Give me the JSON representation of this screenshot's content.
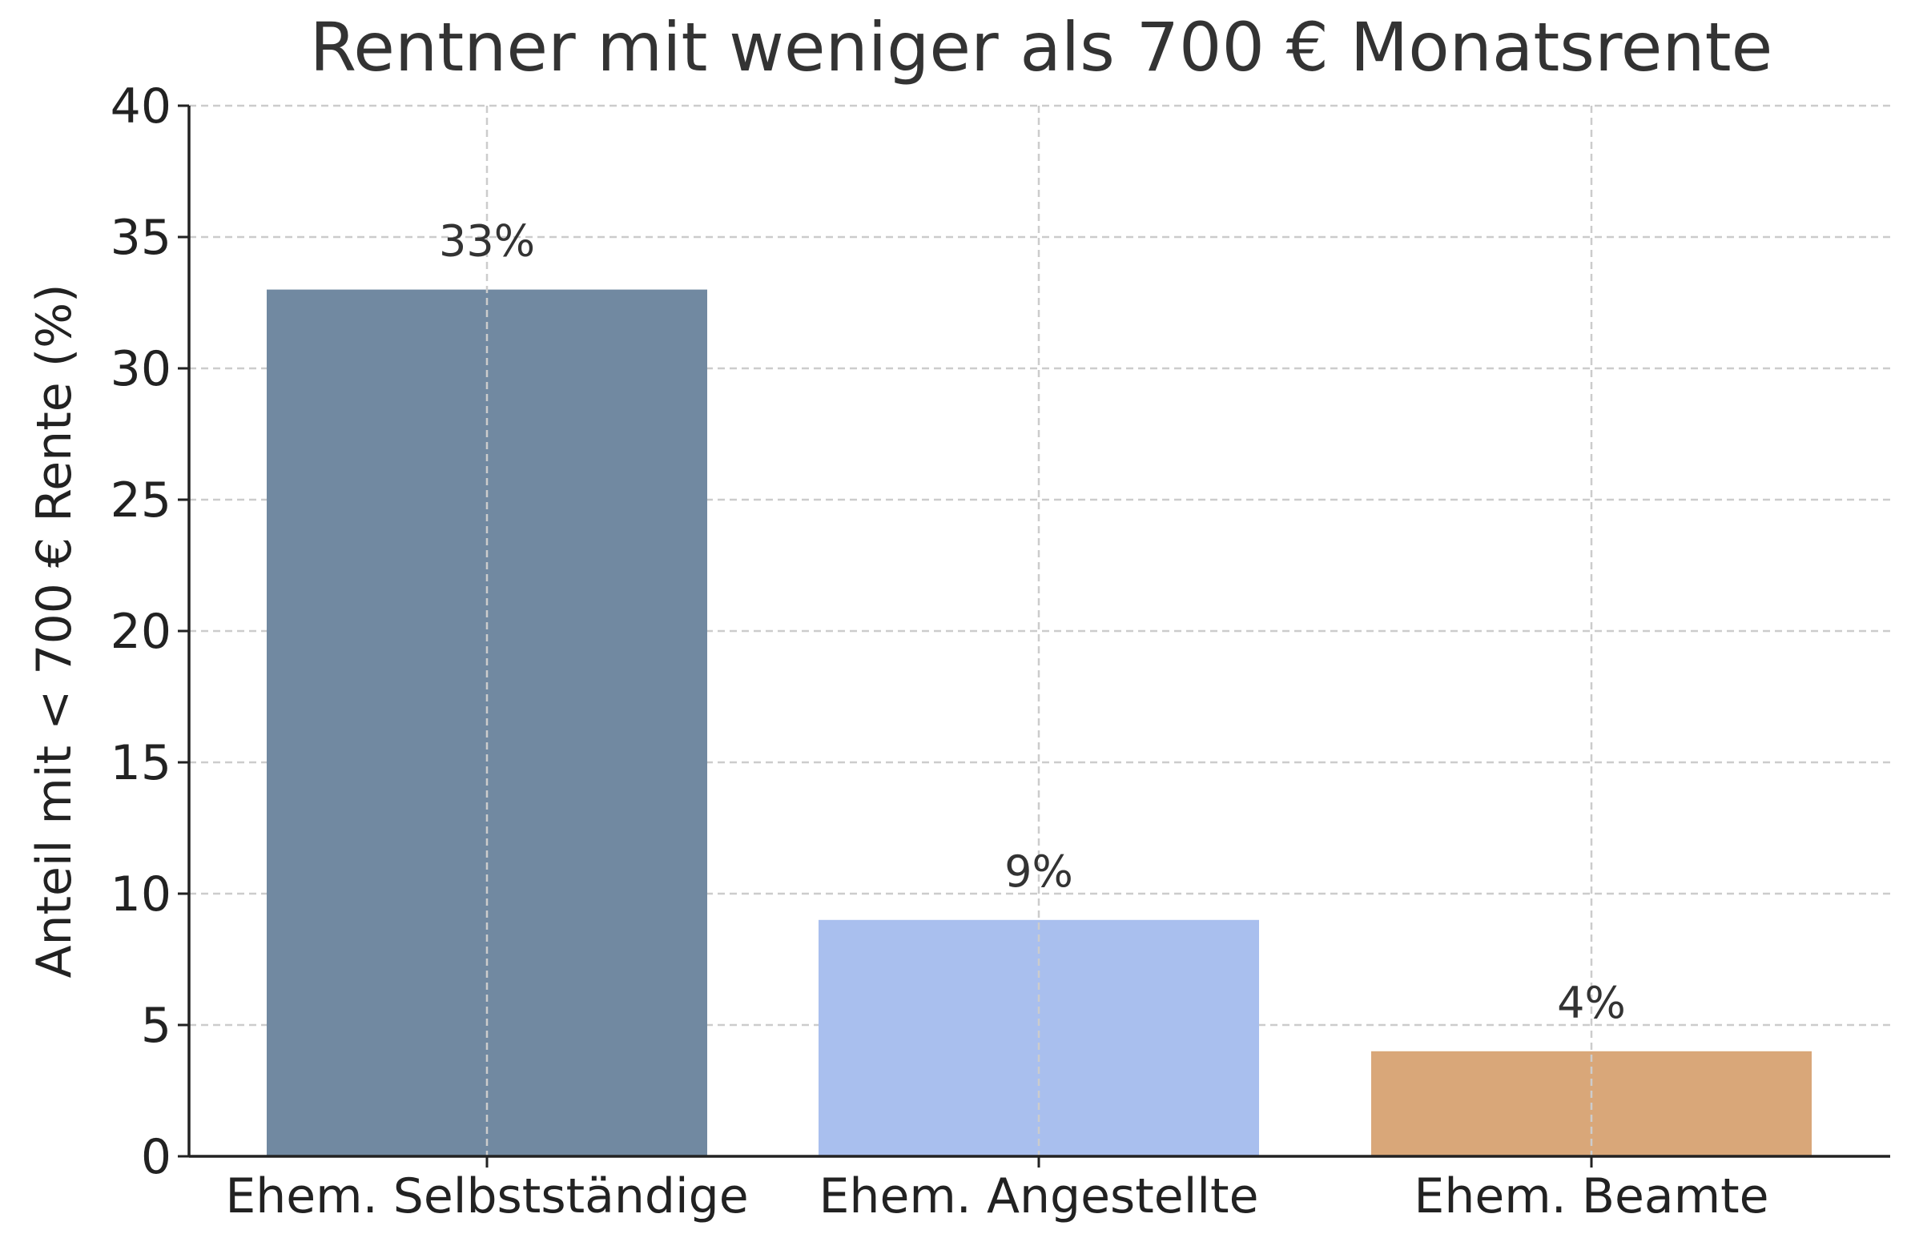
{
  "chart_data": {
    "type": "bar",
    "title": "Rentner mit weniger als 700 € Monatsrente",
    "xlabel": "",
    "ylabel": "Anteil mit < 700 € Rente (%)",
    "categories": [
      "Ehem. Selbstständige",
      "Ehem. Angestellte",
      "Ehem. Beamte"
    ],
    "values": [
      33,
      9,
      4
    ],
    "value_labels": [
      "33%",
      "9%",
      "4%"
    ],
    "colors": [
      "#7189a1",
      "#a9bfee",
      "#d9a779"
    ],
    "ylim": [
      0,
      40
    ],
    "yticks": [
      0,
      5,
      10,
      15,
      20,
      25,
      30,
      35,
      40
    ],
    "grid": true,
    "grid_style": "dashed",
    "legend": "none"
  }
}
